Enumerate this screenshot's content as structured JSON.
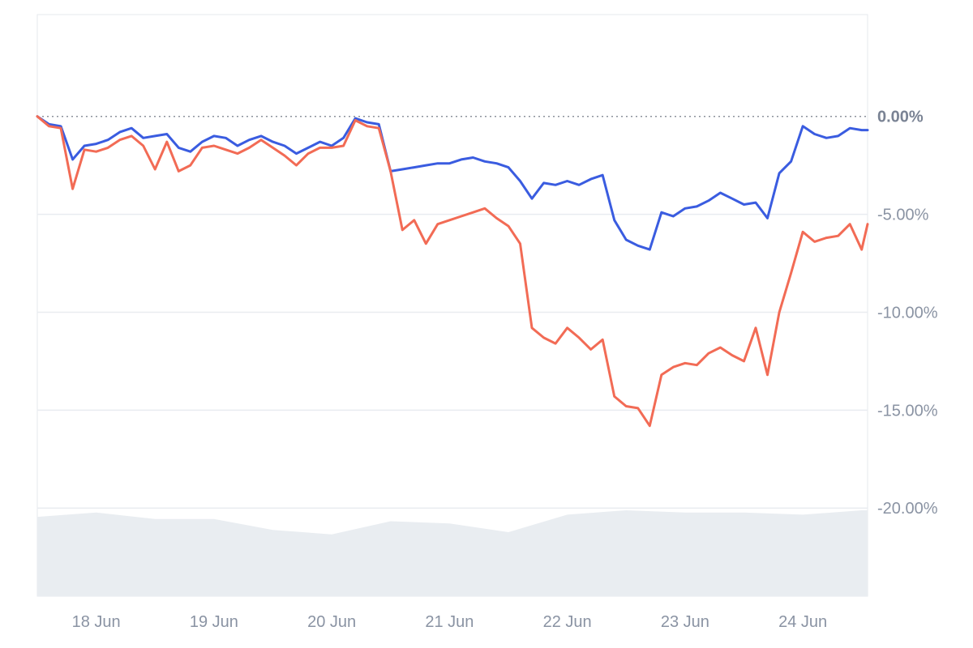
{
  "chart_data": {
    "type": "line",
    "title": "",
    "xlabel": "",
    "ylabel": "",
    "x_tick_labels": [
      "18 Jun",
      "19 Jun",
      "20 Jun",
      "21 Jun",
      "22 Jun",
      "23 Jun",
      "24 Jun"
    ],
    "y_tick_labels": [
      "0.00%",
      "-5.00%",
      "-10.00%",
      "-15.00%",
      "-20.00%"
    ],
    "y_tick_values": [
      0,
      -5,
      -10,
      -15,
      -20
    ],
    "ylim": [
      -24.5,
      5.2
    ],
    "xlim": [
      0,
      7.05
    ],
    "grid": true,
    "baseline": 0,
    "series": [
      {
        "color": "#3a5ce0",
        "x": [
          0.0,
          0.1,
          0.2,
          0.3,
          0.4,
          0.5,
          0.6,
          0.7,
          0.8,
          0.9,
          1.0,
          1.1,
          1.2,
          1.3,
          1.4,
          1.5,
          1.6,
          1.7,
          1.8,
          1.9,
          2.0,
          2.1,
          2.2,
          2.3,
          2.4,
          2.5,
          2.6,
          2.7,
          2.8,
          2.9,
          3.0,
          3.1,
          3.2,
          3.3,
          3.4,
          3.5,
          3.6,
          3.7,
          3.8,
          3.9,
          4.0,
          4.1,
          4.2,
          4.3,
          4.4,
          4.5,
          4.6,
          4.7,
          4.8,
          4.9,
          5.0,
          5.1,
          5.2,
          5.3,
          5.4,
          5.5,
          5.6,
          5.7,
          5.8,
          5.9,
          6.0,
          6.1,
          6.2,
          6.3,
          6.4,
          6.5,
          6.6,
          6.7,
          6.8,
          6.9,
          7.0,
          7.05
        ],
        "y": [
          0.0,
          -0.4,
          -0.5,
          -2.2,
          -1.5,
          -1.4,
          -1.2,
          -0.8,
          -0.6,
          -1.1,
          -1.0,
          -0.9,
          -1.6,
          -1.8,
          -1.3,
          -1.0,
          -1.1,
          -1.5,
          -1.2,
          -1.0,
          -1.3,
          -1.5,
          -1.9,
          -1.6,
          -1.3,
          -1.5,
          -1.1,
          -0.1,
          -0.3,
          -0.4,
          -2.8,
          -2.7,
          -2.6,
          -2.5,
          -2.4,
          -2.4,
          -2.2,
          -2.1,
          -2.3,
          -2.4,
          -2.6,
          -3.3,
          -4.2,
          -3.4,
          -3.5,
          -3.3,
          -3.5,
          -3.2,
          -3.0,
          -5.3,
          -6.3,
          -6.6,
          -6.8,
          -4.9,
          -5.1,
          -4.7,
          -4.6,
          -4.3,
          -3.9,
          -4.2,
          -4.5,
          -4.4,
          -5.2,
          -2.9,
          -2.3,
          -0.5,
          -0.9,
          -1.1,
          -1.0,
          -0.6,
          -0.7,
          -0.7
        ]
      },
      {
        "color": "#f26b55",
        "x": [
          0.0,
          0.1,
          0.2,
          0.3,
          0.4,
          0.5,
          0.6,
          0.7,
          0.8,
          0.9,
          1.0,
          1.1,
          1.2,
          1.3,
          1.4,
          1.5,
          1.6,
          1.7,
          1.8,
          1.9,
          2.0,
          2.1,
          2.2,
          2.3,
          2.4,
          2.5,
          2.6,
          2.7,
          2.8,
          2.9,
          3.0,
          3.1,
          3.2,
          3.3,
          3.4,
          3.5,
          3.6,
          3.7,
          3.8,
          3.9,
          4.0,
          4.1,
          4.2,
          4.3,
          4.4,
          4.5,
          4.6,
          4.7,
          4.8,
          4.9,
          5.0,
          5.1,
          5.2,
          5.3,
          5.4,
          5.5,
          5.6,
          5.7,
          5.8,
          5.9,
          6.0,
          6.1,
          6.2,
          6.3,
          6.4,
          6.5,
          6.6,
          6.7,
          6.8,
          6.9,
          7.0,
          7.05
        ],
        "y": [
          0.0,
          -0.5,
          -0.6,
          -3.7,
          -1.7,
          -1.8,
          -1.6,
          -1.2,
          -1.0,
          -1.5,
          -2.7,
          -1.3,
          -2.8,
          -2.5,
          -1.6,
          -1.5,
          -1.7,
          -1.9,
          -1.6,
          -1.2,
          -1.6,
          -2.0,
          -2.5,
          -1.9,
          -1.6,
          -1.6,
          -1.5,
          -0.2,
          -0.5,
          -0.6,
          -2.8,
          -5.8,
          -5.3,
          -6.5,
          -5.5,
          -5.3,
          -5.1,
          -4.9,
          -4.7,
          -5.2,
          -5.6,
          -6.5,
          -10.8,
          -11.3,
          -11.6,
          -10.8,
          -11.3,
          -11.9,
          -11.4,
          -14.3,
          -14.8,
          -14.9,
          -15.8,
          -13.2,
          -12.8,
          -12.6,
          -12.7,
          -12.1,
          -11.8,
          -12.2,
          -12.5,
          -10.8,
          -13.2,
          -10.0,
          -8.0,
          -5.9,
          -6.4,
          -6.2,
          -6.1,
          -5.5,
          -6.8,
          -5.5
        ]
      }
    ],
    "volume": {
      "color": "#e9edf1",
      "x": [
        0.0,
        0.5,
        1.0,
        1.5,
        2.0,
        2.5,
        3.0,
        3.5,
        4.0,
        4.5,
        5.0,
        5.5,
        6.0,
        6.5,
        7.0,
        7.05
      ],
      "values": [
        0.85,
        0.95,
        0.8,
        0.8,
        0.55,
        0.45,
        0.75,
        0.7,
        0.5,
        0.9,
        1.0,
        0.95,
        0.95,
        0.9,
        1.0,
        1.0
      ]
    }
  }
}
